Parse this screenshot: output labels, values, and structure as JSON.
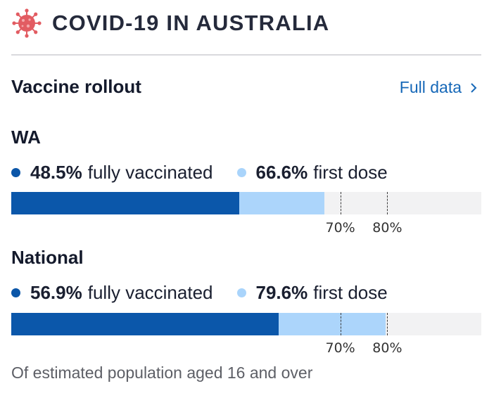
{
  "header": {
    "title": "COVID-19 IN AUSTRALIA",
    "icon": "virus-icon",
    "icon_color": "#e25c62"
  },
  "section": {
    "title": "Vaccine rollout",
    "link_label": "Full data",
    "link_icon": "chevron-right-icon"
  },
  "colors": {
    "fully_vaccinated": "#0b57aa",
    "first_dose": "#acd5fb",
    "track": "#f2f2f3",
    "link": "#1668b8"
  },
  "regions": [
    {
      "name": "WA",
      "fully_pct": 48.5,
      "fully_text": "48.5%",
      "fully_label": "fully vaccinated",
      "first_pct": 66.6,
      "first_text": "66.6%",
      "first_label": "first dose"
    },
    {
      "name": "National",
      "fully_pct": 56.9,
      "fully_text": "56.9%",
      "fully_label": "fully vaccinated",
      "first_pct": 79.6,
      "first_text": "79.6%",
      "first_label": "first dose"
    }
  ],
  "targets": [
    {
      "pct": 70,
      "label": "70%"
    },
    {
      "pct": 80,
      "label": "80%"
    }
  ],
  "footnote": "Of estimated population aged 16 and over"
}
